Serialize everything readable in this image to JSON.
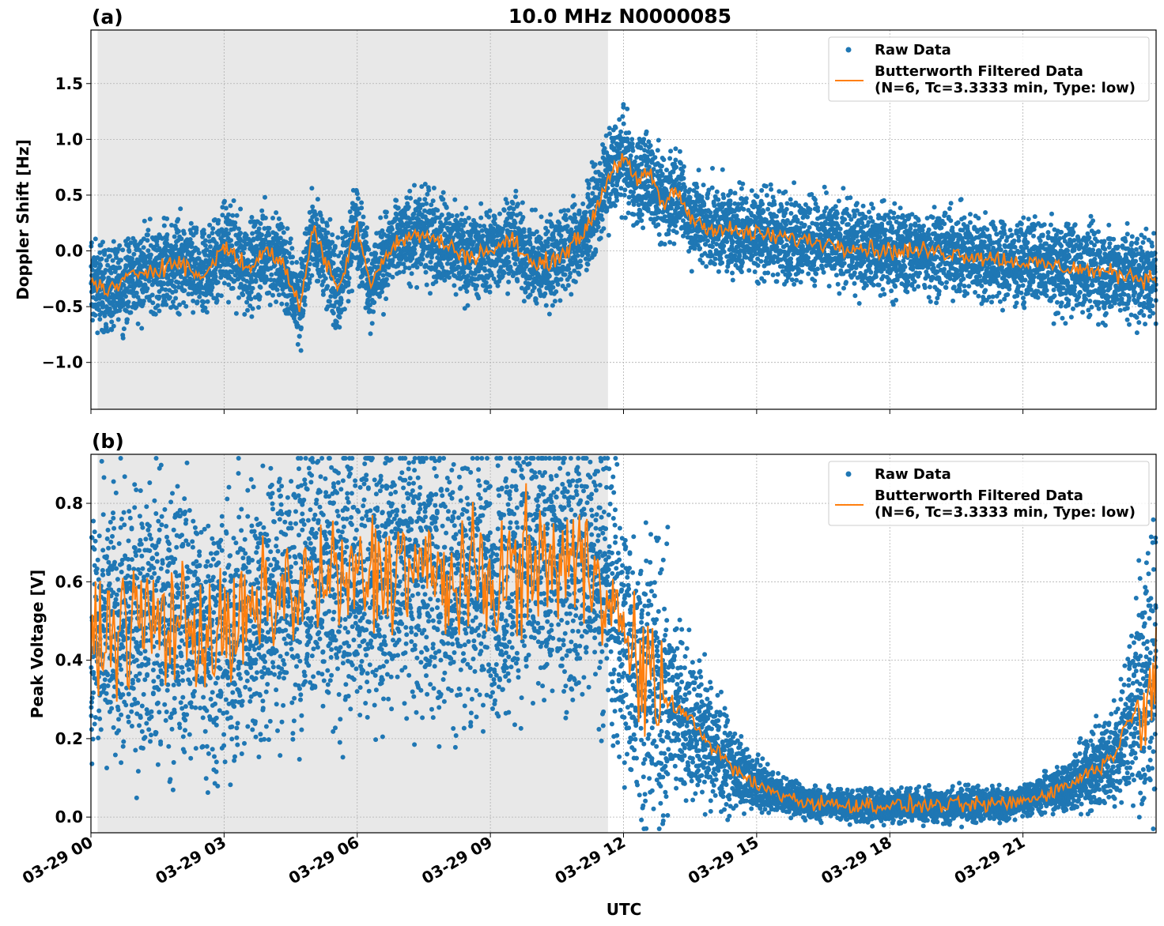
{
  "figure": {
    "title": "10.0 MHz N0000085",
    "xlabel": "UTC",
    "xticks": [
      "03-29 00",
      "03-29 03",
      "03-29 06",
      "03-29 09",
      "03-29 12",
      "03-29 15",
      "03-29 18",
      "03-29 21"
    ]
  },
  "colors": {
    "raw": "#1f77b4",
    "filtered": "#ff7f0e",
    "shade": "#e8e8e8",
    "grid": "#b0b0b0"
  },
  "chart_data": [
    {
      "panel_label": "(a)",
      "type": "scatter",
      "ylabel": "Doppler Shift [Hz]",
      "xlim_hours": [
        0,
        24
      ],
      "ylim": [
        -1.42,
        1.98
      ],
      "yticks": [
        "1.5",
        "1.0",
        "0.5",
        "0.0",
        "−0.5",
        "−1.0"
      ],
      "ytick_values": [
        1.5,
        1.0,
        0.5,
        0.0,
        -0.5,
        -1.0
      ],
      "grid": true,
      "shaded_interval_hours": [
        0.15,
        11.65
      ],
      "legend": {
        "placement": "top-right",
        "entries": [
          "Raw Data",
          "Butterworth Filtered Data",
          "(N=6, Tc=3.3333 min, Type: low)"
        ]
      },
      "series": [
        {
          "name": "Butterworth Filtered Data",
          "kind": "line",
          "x_hours": [
            0,
            0.5,
            1,
            1.5,
            2,
            2.5,
            3,
            3.5,
            4,
            4.3,
            4.7,
            5,
            5.3,
            5.6,
            6,
            6.3,
            6.6,
            7,
            7.5,
            8,
            8.5,
            9,
            9.5,
            10,
            10.5,
            11,
            11.3,
            11.7,
            12,
            12.3,
            12.6,
            12.9,
            13.2,
            13.5,
            14,
            15,
            16,
            17,
            18,
            19,
            20,
            21,
            22,
            23,
            24
          ],
          "values": [
            -0.3,
            -0.35,
            -0.2,
            -0.15,
            -0.1,
            -0.25,
            0.05,
            -0.15,
            0.0,
            -0.1,
            -0.5,
            0.2,
            -0.1,
            -0.35,
            0.25,
            -0.3,
            -0.05,
            0.1,
            0.15,
            0.05,
            -0.05,
            0.0,
            0.1,
            -0.15,
            -0.05,
            0.1,
            0.3,
            0.7,
            0.85,
            0.6,
            0.7,
            0.4,
            0.55,
            0.3,
            0.2,
            0.15,
            0.1,
            0.05,
            0.0,
            0.0,
            -0.05,
            -0.1,
            -0.15,
            -0.2,
            -0.25
          ]
        },
        {
          "name": "Raw Data",
          "kind": "points",
          "spread": 0.28
        }
      ]
    },
    {
      "panel_label": "(b)",
      "type": "scatter",
      "ylabel": "Peak Voltage [V]",
      "xlim_hours": [
        0,
        24
      ],
      "ylim": [
        -0.04,
        0.925
      ],
      "yticks": [
        "0.8",
        "0.6",
        "0.4",
        "0.2",
        "0.0"
      ],
      "ytick_values": [
        0.8,
        0.6,
        0.4,
        0.2,
        0.0
      ],
      "grid": true,
      "shaded_interval_hours": [
        0.15,
        11.65
      ],
      "legend": {
        "placement": "top-right",
        "entries": [
          "Raw Data",
          "Butterworth Filtered Data",
          "(N=6, Tc=3.3333 min, Type: low)"
        ]
      },
      "series": [
        {
          "name": "Butterworth Filtered Data",
          "kind": "line",
          "x_hours": [
            0,
            1,
            2,
            3,
            4,
            5,
            6,
            7,
            8,
            9,
            10,
            11,
            11.6,
            12,
            12.5,
            13,
            13.5,
            14,
            14.5,
            15,
            16,
            17,
            18,
            19,
            20,
            21,
            22,
            23,
            24
          ],
          "values": [
            0.45,
            0.5,
            0.5,
            0.45,
            0.55,
            0.6,
            0.6,
            0.65,
            0.6,
            0.6,
            0.65,
            0.65,
            0.62,
            0.45,
            0.35,
            0.3,
            0.25,
            0.18,
            0.12,
            0.08,
            0.04,
            0.03,
            0.03,
            0.03,
            0.03,
            0.04,
            0.08,
            0.15,
            0.4
          ]
        },
        {
          "name": "Raw Data",
          "kind": "points",
          "spread": 0.25
        }
      ]
    }
  ]
}
